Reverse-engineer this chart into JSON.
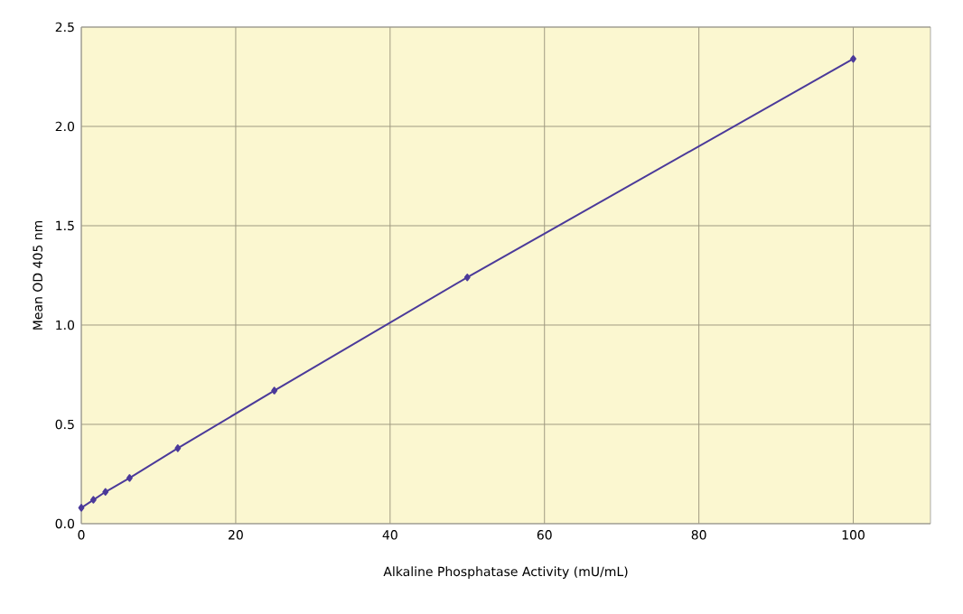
{
  "chart_data": {
    "type": "line",
    "xlabel": "Alkaline Phosphatase Activity (mU/mL)",
    "ylabel": "Mean OD 405 nm",
    "x": [
      0,
      1.5625,
      3.125,
      6.25,
      12.5,
      25,
      50,
      100
    ],
    "series": [
      {
        "color": "#4b3a9a",
        "values": [
          0.08,
          0.12,
          0.16,
          0.23,
          0.38,
          0.67,
          1.24,
          2.34
        ]
      }
    ],
    "xlim": [
      0,
      110
    ],
    "ylim": [
      0,
      2.5
    ],
    "xticks": [
      0,
      20,
      40,
      60,
      80,
      100
    ],
    "yticks": [
      {
        "value": 0,
        "label": "0.0"
      },
      {
        "value": 0.5,
        "label": "0.5"
      },
      {
        "value": 1,
        "label": "1.0"
      },
      {
        "value": 1.5,
        "label": "1.5"
      },
      {
        "value": 2,
        "label": "2.0"
      },
      {
        "value": 2.5,
        "label": "2.5"
      }
    ],
    "grid": true,
    "marker": "diamond",
    "line_style": "solid"
  }
}
